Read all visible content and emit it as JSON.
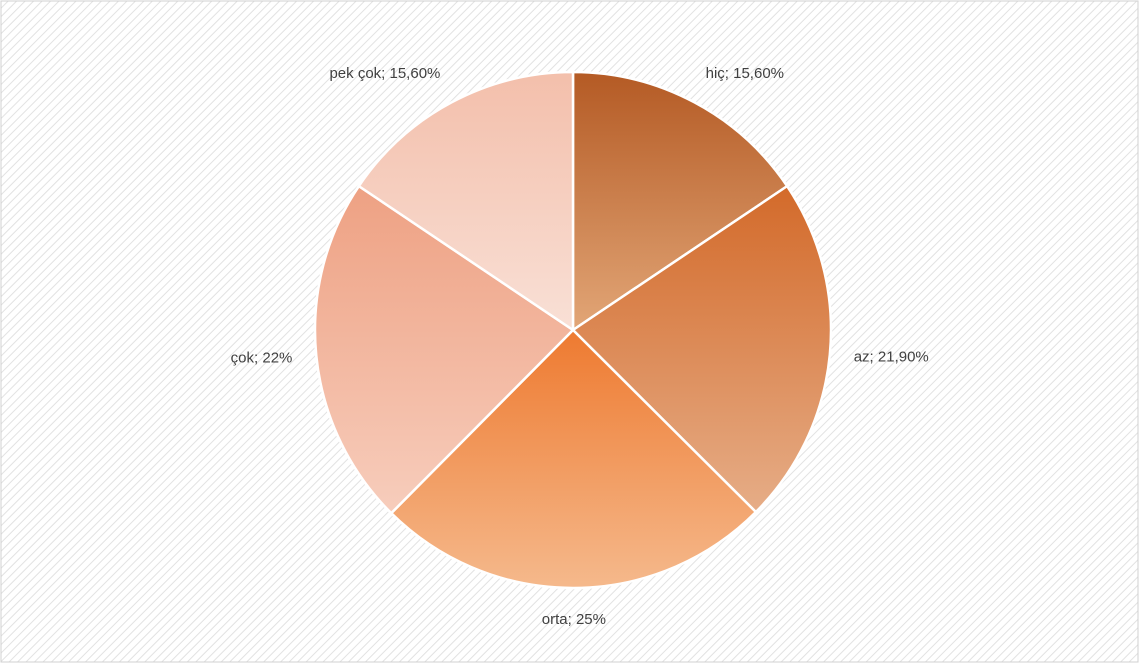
{
  "chart_data": {
    "type": "pie",
    "categories": [
      "hiç",
      "az",
      "orta",
      "çok",
      "pek çok"
    ],
    "values": [
      15.6,
      21.9,
      25,
      22,
      15.6
    ],
    "value_labels": [
      "hiç; 15,60%",
      "az; 21,90%",
      "orta; 25%",
      "çok; 22%",
      "pek çok; 15,60%"
    ],
    "colors": [
      [
        "#b45a24",
        "#e2a677"
      ],
      [
        "#d36a2a",
        "#e6ad87"
      ],
      [
        "#ee7a30",
        "#f5b98c"
      ],
      [
        "#eea183",
        "#f7cdbc"
      ],
      [
        "#f3bfab",
        "#f9e0d6"
      ]
    ]
  }
}
